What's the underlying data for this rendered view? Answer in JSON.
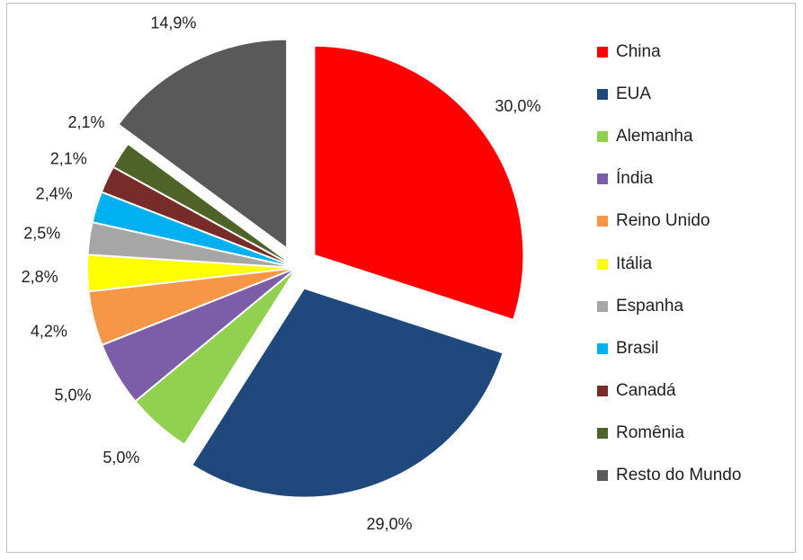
{
  "chart_data": {
    "type": "pie",
    "title": "",
    "legend_position": "right",
    "slices": [
      {
        "name": "China",
        "value": 30.0,
        "label": "30,0%",
        "color": "#ff0000",
        "exploded": true
      },
      {
        "name": "EUA",
        "value": 29.0,
        "label": "29,0%",
        "color": "#1f497d",
        "exploded": true
      },
      {
        "name": "Alemanha",
        "value": 5.0,
        "label": "5,0%",
        "color": "#92d050",
        "exploded": false
      },
      {
        "name": "Índia",
        "value": 5.0,
        "label": "5,0%",
        "color": "#7b5ea7",
        "exploded": false
      },
      {
        "name": "Reino Unido",
        "value": 4.2,
        "label": "4,2%",
        "color": "#f79646",
        "exploded": false
      },
      {
        "name": "Itália",
        "value": 2.8,
        "label": "2,8%",
        "color": "#ffff00",
        "exploded": false
      },
      {
        "name": "Espanha",
        "value": 2.5,
        "label": "2,5%",
        "color": "#a6a6a6",
        "exploded": false
      },
      {
        "name": "Brasil",
        "value": 2.4,
        "label": "2,4%",
        "color": "#00b0f0",
        "exploded": false
      },
      {
        "name": "Canadá",
        "value": 2.1,
        "label": "2,1%",
        "color": "#772c2a",
        "exploded": false
      },
      {
        "name": "Romênia",
        "value": 2.1,
        "label": "2,1%",
        "color": "#4f6228",
        "exploded": false
      },
      {
        "name": "Resto do Mundo",
        "value": 14.9,
        "label": "14,9%",
        "color": "#595959",
        "exploded": true
      }
    ]
  }
}
